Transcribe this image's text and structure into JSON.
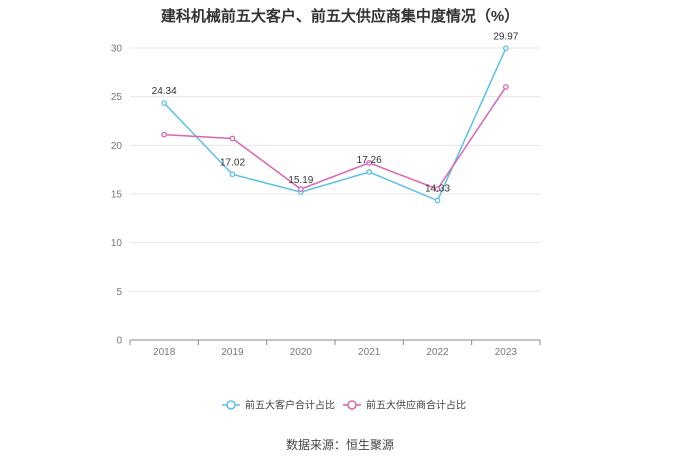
{
  "title": "建科机械前五大客户、前五大供应商集中度情况（%）",
  "source": "数据来源：恒生聚源",
  "chart_data": {
    "type": "line",
    "categories": [
      "2018",
      "2019",
      "2020",
      "2021",
      "2022",
      "2023"
    ],
    "ylim": [
      0,
      30
    ],
    "yticks": [
      0,
      5,
      10,
      15,
      20,
      25,
      30
    ],
    "grid": true,
    "legend_position": "bottom",
    "series": [
      {
        "name": "前五大客户合计占比",
        "color": "#5bc0eb",
        "values": [
          24.34,
          17.02,
          15.19,
          17.26,
          14.33,
          29.97
        ],
        "labels": [
          "24.34",
          "17.02",
          "15.19",
          "17.26",
          "14.33",
          "29.97"
        ]
      },
      {
        "name": "前五大供应商合计占比",
        "color": "#d966b0",
        "values": [
          21.1,
          20.7,
          15.5,
          18.2,
          15.5,
          26.0
        ]
      }
    ]
  }
}
